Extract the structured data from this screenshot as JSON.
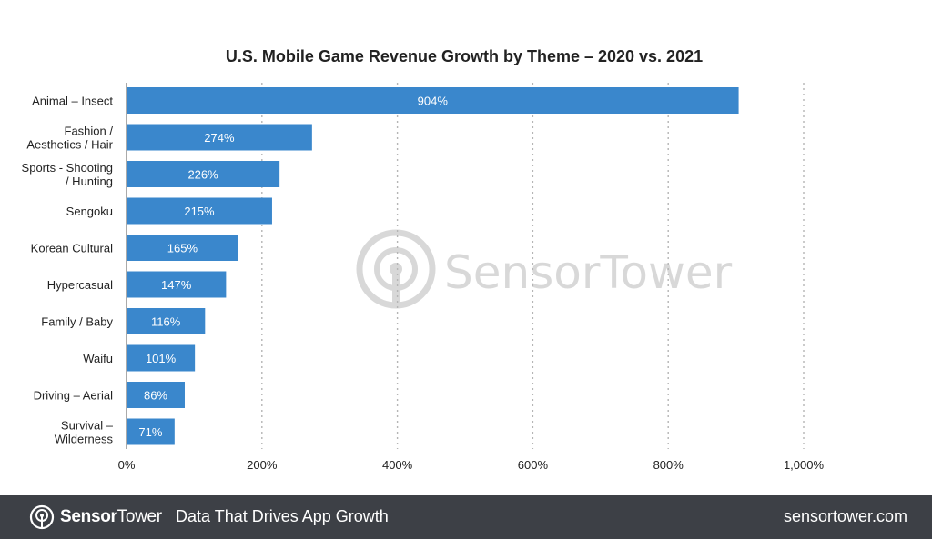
{
  "chart_data": {
    "type": "bar",
    "orientation": "horizontal",
    "title": "U.S. Mobile Game Revenue Growth by Theme – 2020 vs. 2021",
    "categories": [
      [
        "Animal – Insect"
      ],
      [
        "Fashion /",
        "Aesthetics / Hair"
      ],
      [
        "Sports - Shooting",
        "/ Hunting"
      ],
      [
        "Sengoku"
      ],
      [
        "Korean Cultural"
      ],
      [
        "Hypercasual"
      ],
      [
        "Family / Baby"
      ],
      [
        "Waifu"
      ],
      [
        "Driving – Aerial"
      ],
      [
        "Survival –",
        "Wilderness"
      ]
    ],
    "values": [
      904,
      274,
      226,
      215,
      165,
      147,
      116,
      101,
      86,
      71
    ],
    "data_labels": [
      "904%",
      "274%",
      "226%",
      "215%",
      "165%",
      "147%",
      "116%",
      "101%",
      "86%",
      "71%"
    ],
    "xlim": [
      0,
      1000
    ],
    "xticks": [
      0,
      200,
      400,
      600,
      800,
      1000
    ],
    "xtick_labels": [
      "0%",
      "200%",
      "400%",
      "600%",
      "800%",
      "1,000%"
    ],
    "grid": "vertical dotted",
    "bar_color": "#3a87cc",
    "watermark": "SensorTower"
  },
  "footer": {
    "brand_bold": "Sensor",
    "brand_light": "Tower",
    "tagline": "Data That Drives App Growth",
    "url": "sensortower.com",
    "background": "#3d4046"
  }
}
